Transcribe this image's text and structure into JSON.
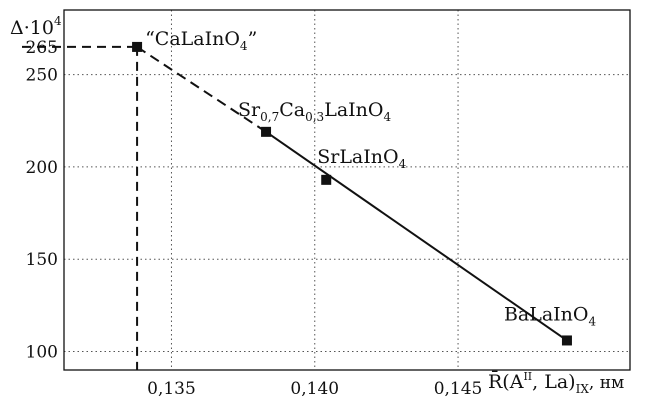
{
  "chart_data": {
    "type": "line",
    "ylabel": {
      "main": "Δ·10",
      "sup": "4"
    },
    "xlabel": {
      "main": "R̄(A",
      "sup": "II",
      "mid": ", La)",
      "sub": "IX",
      "tail": ", нм"
    },
    "x_ticks": [
      {
        "value": 0.135,
        "label": "0,135"
      },
      {
        "value": 0.14,
        "label": "0,140"
      },
      {
        "value": 0.145,
        "label": "0,145"
      }
    ],
    "y_ticks": [
      {
        "value": 100,
        "label": "100"
      },
      {
        "value": 150,
        "label": "150"
      },
      {
        "value": 200,
        "label": "200"
      },
      {
        "value": 250,
        "label": "250"
      },
      {
        "value": 265,
        "label": "265"
      }
    ],
    "xlim": [
      0.13125,
      0.151
    ],
    "ylim": [
      90,
      285
    ],
    "grid": true,
    "points": [
      {
        "x": 0.1338,
        "y": 265,
        "label": [
          [
            "“CaLaInO",
            ""
          ],
          [
            "4",
            "sub"
          ],
          [
            "”",
            ""
          ]
        ]
      },
      {
        "x": 0.1383,
        "y": 219,
        "label": [
          [
            "Sr",
            ""
          ],
          [
            "0,7",
            "sub"
          ],
          [
            "Ca",
            ""
          ],
          [
            "0,3",
            "sub"
          ],
          [
            "LaInO",
            ""
          ],
          [
            "4",
            "sub"
          ]
        ]
      },
      {
        "x": 0.1404,
        "y": 193,
        "label": [
          [
            "SrLaInO",
            ""
          ],
          [
            "4",
            "sub"
          ]
        ]
      },
      {
        "x": 0.1488,
        "y": 106,
        "label": [
          [
            "BaLaInO",
            ""
          ],
          [
            "4",
            "sub"
          ]
        ]
      }
    ],
    "segments": [
      {
        "from": 0,
        "to": 1,
        "style": "dashed"
      },
      {
        "from": 1,
        "to": 3,
        "style": "solid"
      }
    ],
    "guides": {
      "x": 0.1338,
      "y": 265,
      "style": "dashed"
    }
  }
}
